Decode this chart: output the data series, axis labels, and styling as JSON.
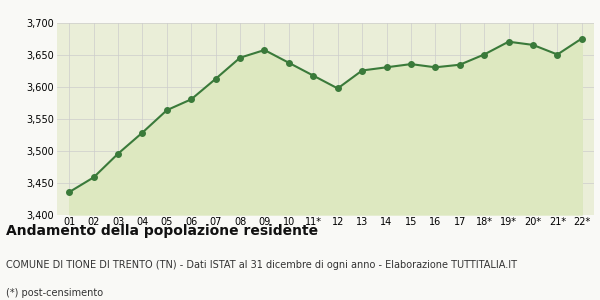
{
  "x_labels": [
    "01",
    "02",
    "03",
    "04",
    "05",
    "06",
    "07",
    "08",
    "09",
    "10",
    "11*",
    "12",
    "13",
    "14",
    "15",
    "16",
    "17",
    "18*",
    "19*",
    "20*",
    "21*",
    "22*"
  ],
  "y_values": [
    3435,
    3458,
    3495,
    3528,
    3563,
    3580,
    3612,
    3645,
    3657,
    3637,
    3617,
    3597,
    3625,
    3630,
    3635,
    3630,
    3634,
    3650,
    3670,
    3665,
    3650,
    3675
  ],
  "line_color": "#3a7a3a",
  "fill_color": "#dde8c0",
  "marker_color": "#3a7a3a",
  "bg_color": "#f9f9f6",
  "plot_bg_color": "#eaeed8",
  "ylim": [
    3400,
    3700
  ],
  "yticks": [
    3400,
    3450,
    3500,
    3550,
    3600,
    3650,
    3700
  ],
  "grid_color": "#cccccc",
  "title1": "Andamento della popolazione residente",
  "title2": "COMUNE DI TIONE DI TRENTO (TN) - Dati ISTAT al 31 dicembre di ogni anno - Elaborazione TUTTITALIA.IT",
  "title3": "(*) post-censimento",
  "title1_fontsize": 10,
  "title2_fontsize": 7,
  "title3_fontsize": 7,
  "tick_fontsize": 7,
  "line_width": 1.5,
  "marker_size": 4
}
